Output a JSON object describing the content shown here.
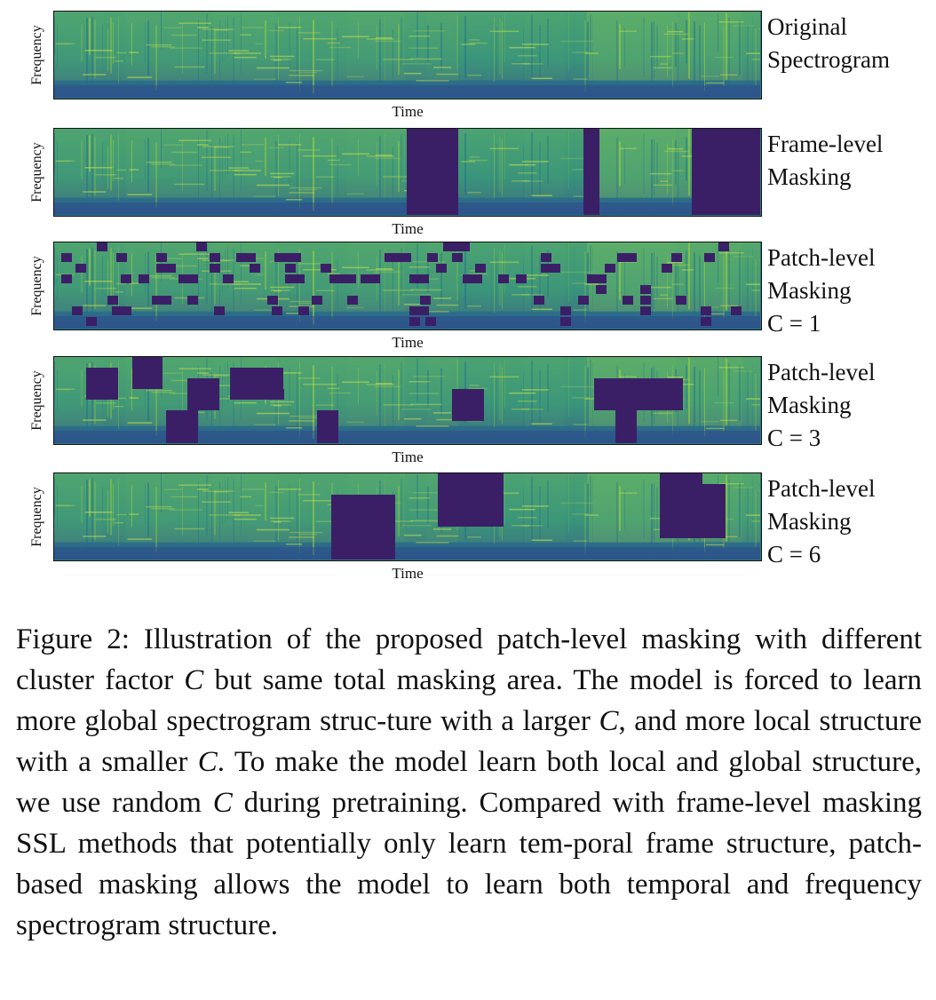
{
  "axis": {
    "ylabel": "Frequency",
    "xlabel": "Time"
  },
  "colors": {
    "mask": "#3b1f66",
    "spectrogram_high": "#7fcc4c",
    "spectrogram_mid": "#2aa67e",
    "spectrogram_low": "#2b5d8a"
  },
  "panels": [
    {
      "name": "original",
      "label_lines": [
        "Original",
        "Spectrogram"
      ]
    },
    {
      "name": "frame-level",
      "label_lines": [
        "Frame-level",
        "Masking"
      ]
    },
    {
      "name": "patch-c1",
      "label_lines": [
        "Patch-level",
        "Masking",
        "C = 1"
      ]
    },
    {
      "name": "patch-c3",
      "label_lines": [
        "Patch-level",
        "Masking",
        "C = 3"
      ]
    },
    {
      "name": "patch-c6",
      "label_lines": [
        "Patch-level",
        "Masking",
        "C = 6"
      ]
    }
  ],
  "caption": {
    "p1": "Figure 2: Illustration of the proposed patch-level masking with different cluster factor ",
    "v1": "C",
    "p2": " but same total masking area. The model is forced to learn more global spectrogram struc-ture with a larger ",
    "v2": "C",
    "p3": ", and more local structure with a smaller ",
    "v3": "C",
    "p4": ". To make the model learn both local and global structure, we use random ",
    "v4": "C",
    "p5": " during pretraining. Compared with frame-level masking SSL methods that potentially only learn tem-poral frame structure, patch-based masking allows the model to learn both temporal and frequency spectrogram structure."
  }
}
